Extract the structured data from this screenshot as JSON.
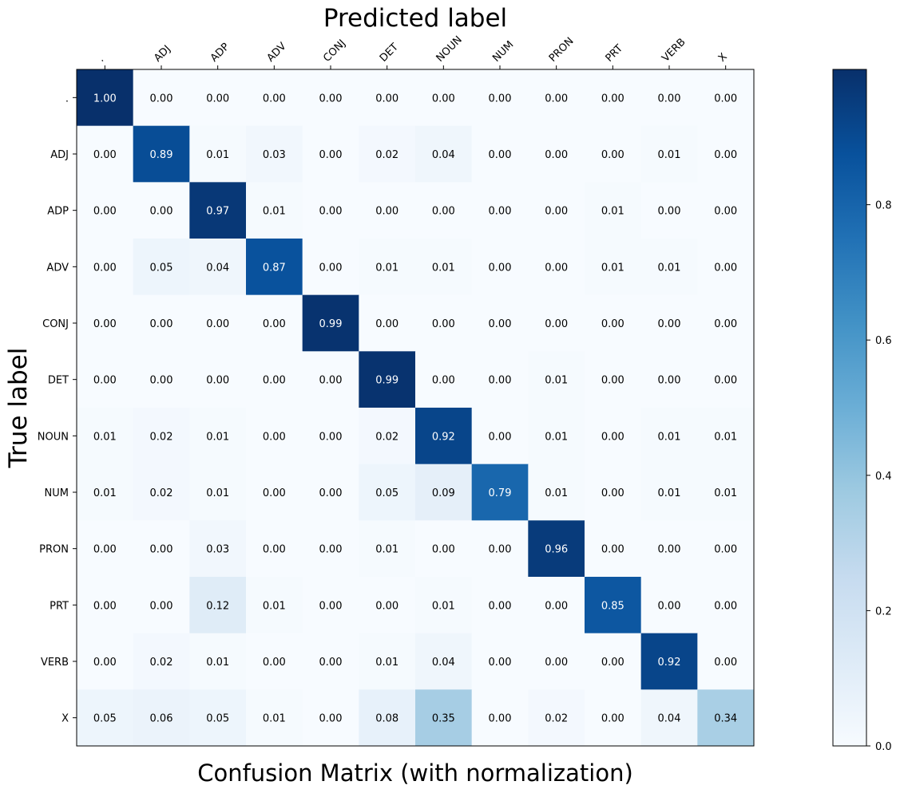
{
  "chart_data": {
    "type": "heatmap",
    "title": "Confusion Matrix (with normalization)",
    "xlabel": "Predicted label",
    "ylabel": "True label",
    "x_categories": [
      ".",
      "ADJ",
      "ADP",
      "ADV",
      "CONJ",
      "DET",
      "NOUN",
      "NUM",
      "PRON",
      "PRT",
      "VERB",
      "X"
    ],
    "y_categories": [
      ".",
      "ADJ",
      "ADP",
      "ADV",
      "CONJ",
      "DET",
      "NOUN",
      "NUM",
      "PRON",
      "PRT",
      "VERB",
      "X"
    ],
    "values": [
      [
        1.0,
        0.0,
        0.0,
        0.0,
        0.0,
        0.0,
        0.0,
        0.0,
        0.0,
        0.0,
        0.0,
        0.0
      ],
      [
        0.0,
        0.89,
        0.01,
        0.03,
        0.0,
        0.02,
        0.04,
        0.0,
        0.0,
        0.0,
        0.01,
        0.0
      ],
      [
        0.0,
        0.0,
        0.97,
        0.01,
        0.0,
        0.0,
        0.0,
        0.0,
        0.0,
        0.01,
        0.0,
        0.0
      ],
      [
        0.0,
        0.05,
        0.04,
        0.87,
        0.0,
        0.01,
        0.01,
        0.0,
        0.0,
        0.01,
        0.01,
        0.0
      ],
      [
        0.0,
        0.0,
        0.0,
        0.0,
        0.99,
        0.0,
        0.0,
        0.0,
        0.0,
        0.0,
        0.0,
        0.0
      ],
      [
        0.0,
        0.0,
        0.0,
        0.0,
        0.0,
        0.99,
        0.0,
        0.0,
        0.01,
        0.0,
        0.0,
        0.0
      ],
      [
        0.01,
        0.02,
        0.01,
        0.0,
        0.0,
        0.02,
        0.92,
        0.0,
        0.01,
        0.0,
        0.01,
        0.01
      ],
      [
        0.01,
        0.02,
        0.01,
        0.0,
        0.0,
        0.05,
        0.09,
        0.79,
        0.01,
        0.0,
        0.01,
        0.01
      ],
      [
        0.0,
        0.0,
        0.03,
        0.0,
        0.0,
        0.01,
        0.0,
        0.0,
        0.96,
        0.0,
        0.0,
        0.0
      ],
      [
        0.0,
        0.0,
        0.12,
        0.01,
        0.0,
        0.0,
        0.01,
        0.0,
        0.0,
        0.85,
        0.0,
        0.0
      ],
      [
        0.0,
        0.02,
        0.01,
        0.0,
        0.0,
        0.01,
        0.04,
        0.0,
        0.0,
        0.0,
        0.92,
        0.0
      ],
      [
        0.05,
        0.06,
        0.05,
        0.01,
        0.0,
        0.08,
        0.35,
        0.0,
        0.02,
        0.0,
        0.04,
        0.34
      ]
    ],
    "value_format": "0.00",
    "colormap": "Blues",
    "color_scale": {
      "low_color": "#f7fbff",
      "high_color": "#08306b"
    },
    "colorbar": {
      "range": [
        0.0,
        1.0
      ],
      "ticks": [
        0.0,
        0.2,
        0.4,
        0.6,
        0.8
      ],
      "tick_labels": [
        "0.0",
        "0.2",
        "0.4",
        "0.6",
        "0.8"
      ]
    },
    "x_axis_position": "top",
    "grid": false
  }
}
